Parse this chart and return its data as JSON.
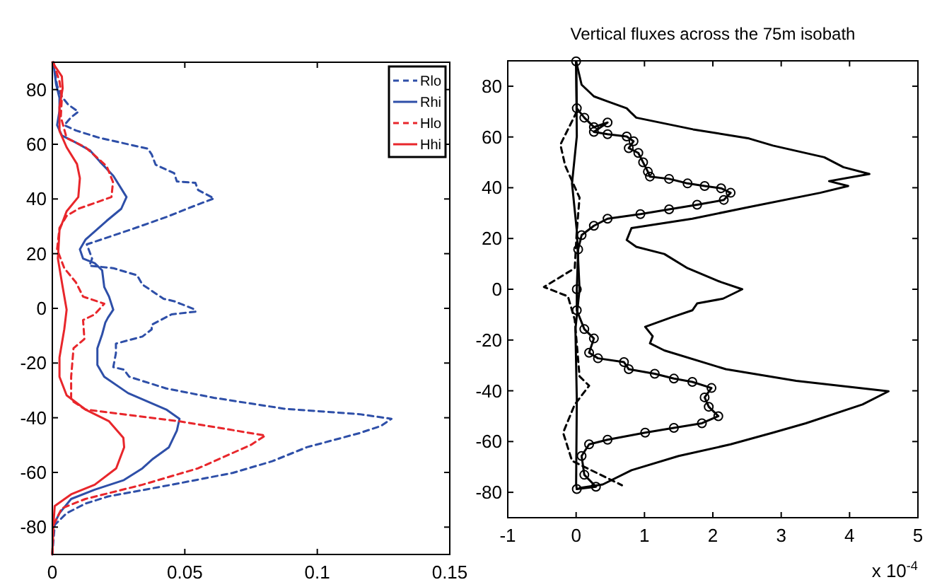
{
  "chart_data": [
    {
      "type": "line",
      "legend": "top right",
      "xlim": [
        0,
        0.15
      ],
      "xticks": [
        0,
        0.05,
        0.1,
        0.15
      ],
      "ylim": [
        -90,
        90
      ],
      "yticks": [
        -80,
        -60,
        -40,
        -20,
        0,
        20,
        40,
        60,
        80
      ],
      "series": [
        {
          "name": "Rlo",
          "color": "#2e4fa8",
          "line_style": "dashed",
          "x": [
            0.0004,
            0.0018,
            0.0036,
            0.006,
            0.0098,
            0.007,
            0.0045,
            0.009,
            0.018,
            0.036,
            0.0375,
            0.039,
            0.046,
            0.047,
            0.054,
            0.055,
            0.061,
            0.055,
            0.043,
            0.029,
            0.013,
            0.015,
            0.014,
            0.023,
            0.032,
            0.034,
            0.042,
            0.046,
            0.054,
            0.054,
            0.045,
            0.0375,
            0.0375,
            0.034,
            0.024,
            0.024,
            0.023,
            0.027,
            0.029,
            0.043,
            0.061,
            0.0875,
            0.116,
            0.128,
            0.124,
            0.116,
            0.096,
            0.083,
            0.068,
            0.045,
            0.021,
            0.0125,
            0.0054,
            0.0009,
            0
          ],
          "values": [
            90,
            81.4,
            77.4,
            74.5,
            71.9,
            69.8,
            67,
            65,
            62.3,
            58.4,
            56.3,
            52.5,
            49.4,
            46.4,
            45.9,
            43.3,
            40.2,
            38,
            33.4,
            28.6,
            23.4,
            18.2,
            15.6,
            14.7,
            12.1,
            8.7,
            3.5,
            2.6,
            -0.5,
            -1.2,
            -2.2,
            -6,
            -7.7,
            -10.3,
            -12.9,
            -16.4,
            -21.5,
            -22.4,
            -25,
            -29.3,
            -32.7,
            -36.7,
            -38.7,
            -40.4,
            -43,
            -45.6,
            -50.8,
            -55.9,
            -60.2,
            -64.5,
            -68.8,
            -71.4,
            -74.9,
            -79.2,
            -90
          ]
        },
        {
          "name": "Rhi",
          "color": "#2e4fa8",
          "line_style": "solid",
          "x": [
            0.0004,
            0.0014,
            0.0027,
            0.0027,
            0.0018,
            0.0036,
            0.0089,
            0.0143,
            0.0179,
            0.023,
            0.028,
            0.026,
            0.0205,
            0.0125,
            0.0104,
            0.0116,
            0.016,
            0.0188,
            0.0196,
            0.0214,
            0.023,
            0.021,
            0.02,
            0.0188,
            0.017,
            0.017,
            0.0196,
            0.0286,
            0.043,
            0.048,
            0.047,
            0.044,
            0.038,
            0.034,
            0.027,
            0.016,
            0.0071,
            0.0027,
            0.0005
          ],
          "values": [
            90,
            82,
            77,
            72.2,
            67,
            63.2,
            60.6,
            57.7,
            53.7,
            48.5,
            40.7,
            36.4,
            32,
            25.1,
            21.6,
            18.2,
            16.5,
            13.9,
            7.8,
            4.3,
            -0.5,
            -3.4,
            -5.2,
            -9.5,
            -14.6,
            -20.7,
            -25,
            -31,
            -37,
            -40.4,
            -44.7,
            -50.8,
            -55,
            -58.5,
            -62.8,
            -66.3,
            -69.7,
            -74.9,
            -79.2
          ]
        },
        {
          "name": "Hlo",
          "color": "#e8262b",
          "line_style": "dashed",
          "x": [
            0.0004,
            0.0027,
            0.0036,
            0.0032,
            0.0054,
            0.0125,
            0.0205,
            0.0229,
            0.0223,
            0.0098,
            0.0054,
            0.0027,
            0.0018,
            0.0045,
            0.0089,
            0.0116,
            0.0196,
            0.016,
            0.0116,
            0.0121,
            0.008,
            0.0071,
            0.0071,
            0.0125,
            0.048,
            0.0804,
            0.075,
            0.055,
            0.034,
            0.0125,
            0.0036,
            0.0004,
            0
          ],
          "values": [
            90,
            83,
            77,
            70,
            62.3,
            58.9,
            52,
            46.2,
            40.7,
            36.4,
            33.8,
            29.4,
            21.6,
            14.7,
            9.5,
            4.3,
            1.7,
            -2.2,
            -4.3,
            -11.2,
            -14.6,
            -25,
            -33.6,
            -37,
            -41.3,
            -46.5,
            -49.9,
            -58.5,
            -64.5,
            -69.7,
            -73.1,
            -79.2,
            -90
          ]
        },
        {
          "name": "Hhi",
          "color": "#e8262b",
          "line_style": "solid",
          "x": [
            0,
            0.0036,
            0.0039,
            0.0027,
            0.0027,
            0.0054,
            0.0093,
            0.0104,
            0.0098,
            0.0054,
            0.0027,
            0.0021,
            0.0039,
            0.0054,
            0.0045,
            0.0027,
            0.0027,
            0.0054,
            0.0125,
            0.0214,
            0.0268,
            0.0271,
            0.0241,
            0.016,
            0.0071,
            0.0009,
            0.0004,
            0
          ],
          "values": [
            90,
            84.8,
            80.5,
            73.6,
            64.9,
            58.9,
            52.8,
            47.6,
            40.7,
            35.5,
            28.6,
            18.2,
            7.8,
            -0.5,
            -7.7,
            -18,
            -25,
            -31.8,
            -37,
            -41.3,
            -47.3,
            -50.8,
            -58.5,
            -64.5,
            -68,
            -72.3,
            -79.2,
            -90
          ]
        }
      ]
    },
    {
      "type": "line",
      "title": "Vertical fluxes across the 75m isobath",
      "annotations": [
        "x 10$^{-4}$"
      ],
      "xlim": [
        -1,
        5
      ],
      "xticks": [
        -1,
        0,
        1,
        2,
        3,
        4,
        5
      ],
      "ylim": [
        -90,
        90
      ],
      "yticks": [
        -80,
        -60,
        -40,
        -20,
        0,
        20,
        40,
        60,
        80
      ],
      "series": [
        {
          "color": "#000000",
          "line_style": "solid",
          "x": [
            0,
            0.08,
            0.26,
            0.46,
            0.74,
            0.81,
            0.88,
            1.71,
            2.53,
            2.88,
            3.63,
            3.91,
            4.29,
            3.7,
            3.98,
            3.57,
            2.53,
            1.7,
            0.81,
            0.74,
            0.88,
            1.29,
            1.63,
            2.12,
            2.43,
            2.15,
            1.77,
            1.7,
            1.39,
            1.01,
            1.12,
            1.08,
            1.29,
            2.19,
            3.22,
            4.57,
            4.19,
            3.36,
            2.88,
            2.26,
            1.5,
            0.81,
            0.39,
            0.05
          ],
          "values": [
            89.8,
            80.6,
            76,
            74,
            71.3,
            69.4,
            67.6,
            63,
            59.4,
            56.6,
            52,
            48.1,
            45.4,
            42.6,
            40.7,
            38,
            32.4,
            27.8,
            24.1,
            19.4,
            16.7,
            13.9,
            8.3,
            2.8,
            0,
            -3.7,
            -5.6,
            -8.3,
            -11.1,
            -14.8,
            -18.5,
            -21.3,
            -24.1,
            -31.5,
            -36.1,
            -40.2,
            -45.4,
            -52.8,
            -56.5,
            -61.1,
            -65.7,
            -71.3,
            -76.9,
            -78.3
          ]
        },
        {
          "color": "#000000",
          "line_style": "solid",
          "marker": "circle",
          "x": [
            0,
            0.01,
            0.12,
            0.26,
            0.46,
            0.26,
            0.46,
            0.74,
            0.84,
            0.77,
            0.91,
            0.98,
            1.05,
            1.08,
            1.36,
            1.63,
            1.88,
            2.12,
            2.26,
            2.16,
            1.77,
            1.36,
            0.94,
            0.46,
            0.26,
            0.08,
            0.03,
            0.01,
            0.01,
            0.12,
            0.26,
            0.19,
            0.32,
            0.7,
            0.77,
            1.15,
            1.43,
            1.7,
            1.98,
            1.88,
            1.94,
            2.08,
            1.84,
            1.43,
            1.01,
            0.46,
            0.19,
            0.08,
            0.12,
            0.29,
            0.01
          ],
          "values": [
            89.8,
            71.3,
            67.6,
            63.9,
            65.7,
            62,
            61.1,
            60.2,
            58.3,
            55.6,
            53.7,
            50,
            46.3,
            44.4,
            43.5,
            41.7,
            40.7,
            39.8,
            38,
            35.2,
            33.3,
            31.5,
            29.6,
            27.8,
            25,
            21.3,
            15.7,
            0,
            -8.3,
            -15.7,
            -19.4,
            -25,
            -27.2,
            -28.7,
            -31.5,
            -33.3,
            -35.2,
            -36.5,
            -38.9,
            -42.6,
            -46.3,
            -50,
            -52.8,
            -54.6,
            -56.5,
            -59.3,
            -61.1,
            -65.7,
            -73.1,
            -77.8,
            -78.7
          ]
        },
        {
          "color": "#000000",
          "line_style": "solid",
          "x": [
            0,
            0.01,
            -0.06,
            0.01,
            0.05,
            -0.01,
            0.01,
            0,
            0.01
          ],
          "values": [
            89.8,
            60.2,
            41.7,
            23.1,
            0,
            -15.7,
            -43.5,
            -76.9,
            -78.7
          ]
        },
        {
          "color": "#000000",
          "line_style": "dashed",
          "x": [
            0.01,
            -0.23,
            -0.16,
            0.05,
            0.01,
            -0.02,
            -0.47,
            -0.12,
            -0.02,
            0.05,
            0.19,
            -0.02,
            -0.19,
            -0.06,
            0.67
          ],
          "values": [
            70,
            57,
            48.7,
            36.1,
            23.1,
            8.3,
            0.9,
            -2.8,
            -12,
            -34.3,
            -38,
            -45.4,
            -56.5,
            -67.6,
            -77.2
          ]
        }
      ]
    }
  ]
}
